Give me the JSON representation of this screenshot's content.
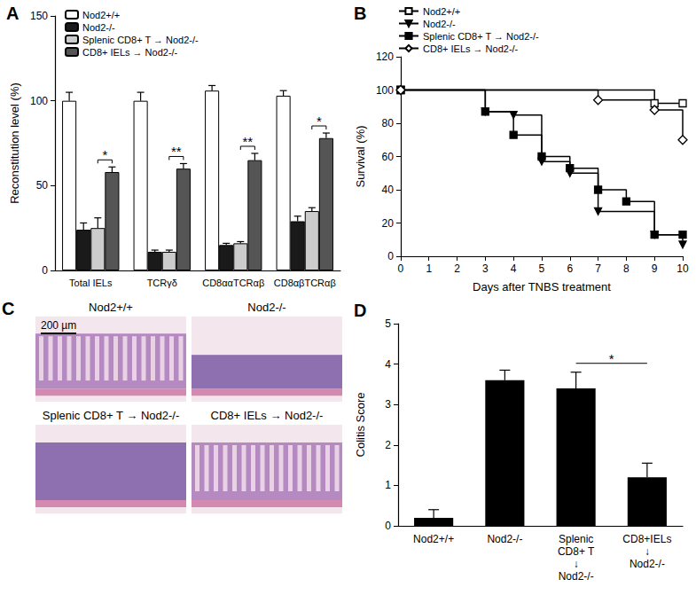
{
  "chart_data": [
    {
      "panel": "A",
      "type": "bar",
      "y_label": "Reconstitution level (%)",
      "categories": [
        "Total IELs",
        "TCRγδ",
        "CD8ααTCRαβ",
        "CD8αβTCRαβ"
      ],
      "ylim": [
        0,
        150
      ],
      "yticks": [
        0,
        50,
        100,
        150
      ],
      "legend": "upper-left",
      "series": [
        {
          "name": "Nod2+/+",
          "color": "#ffffff",
          "values": [
            100,
            100,
            106,
            103
          ],
          "errors": [
            5,
            5,
            3,
            3
          ]
        },
        {
          "name": "Nod2-/-",
          "color": "#1a1a1a",
          "values": [
            24,
            11,
            15,
            29
          ],
          "errors": [
            4,
            1,
            1,
            3
          ]
        },
        {
          "name": "Splenic CD8+ T → Nod2-/-",
          "color": "#cccccc",
          "values": [
            25,
            11,
            16,
            35
          ],
          "errors": [
            6,
            1,
            1,
            2
          ]
        },
        {
          "name": "CD8+ IELs → Nod2-/-",
          "color": "#555555",
          "values": [
            58,
            60,
            65,
            78
          ],
          "errors": [
            3,
            3,
            4,
            3
          ]
        }
      ],
      "annotations": [
        {
          "category": "Total IELs",
          "text": "*",
          "between": [
            "Splenic CD8+ T → Nod2-/-",
            "CD8+ IELs → Nod2-/-"
          ]
        },
        {
          "category": "TCRγδ",
          "text": "**",
          "between": [
            "Splenic CD8+ T → Nod2-/-",
            "CD8+ IELs → Nod2-/-"
          ]
        },
        {
          "category": "CD8ααTCRαβ",
          "text": "**",
          "between": [
            "Splenic CD8+ T → Nod2-/-",
            "CD8+ IELs → Nod2-/-"
          ]
        },
        {
          "category": "CD8αβTCRαβ",
          "text": "*",
          "between": [
            "Splenic CD8+ T → Nod2-/-",
            "CD8+ IELs → Nod2-/-"
          ]
        }
      ]
    },
    {
      "panel": "B",
      "type": "line",
      "x_label": "Days after TNBS treatment",
      "y_label": "Survival (%)",
      "xlim": [
        0,
        10
      ],
      "xticks": [
        0,
        1,
        2,
        3,
        4,
        5,
        6,
        7,
        8,
        9,
        10
      ],
      "ylim": [
        0,
        120
      ],
      "yticks": [
        0,
        20,
        40,
        60,
        80,
        100,
        120
      ],
      "legend": "upper-left",
      "series": [
        {
          "name": "Nod2+/+",
          "color": "#000000",
          "marker": "open-square",
          "line_style": "step",
          "x": [
            0,
            9,
            10
          ],
          "values": [
            100,
            92,
            92
          ]
        },
        {
          "name": "Nod2-/-",
          "color": "#000000",
          "marker": "triangle-down",
          "line_style": "step",
          "x": [
            0,
            3,
            4,
            5,
            6,
            7,
            9,
            10
          ],
          "values": [
            100,
            87,
            85,
            57,
            50,
            27,
            13,
            7
          ]
        },
        {
          "name": "Splenic CD8+ T → Nod2-/-",
          "color": "#000000",
          "marker": "square",
          "line_style": "step",
          "x": [
            0,
            3,
            4,
            5,
            6,
            7,
            8,
            9,
            10
          ],
          "values": [
            100,
            87,
            73,
            60,
            53,
            40,
            33,
            13,
            13
          ]
        },
        {
          "name": "CD8+ IELs → Nod2-/-",
          "color": "#000000",
          "marker": "open-diamond",
          "line_style": "step",
          "x": [
            0,
            7,
            9,
            10
          ],
          "values": [
            100,
            94,
            88,
            70
          ]
        }
      ]
    },
    {
      "panel": "C",
      "type": "image",
      "scale_bar": "200 µm",
      "images": [
        {
          "title": "Nod2+/+"
        },
        {
          "title": "Nod2-/-"
        },
        {
          "title": "Splenic CD8+ T → Nod2-/-"
        },
        {
          "title": "CD8+ IELs → Nod2-/-"
        }
      ]
    },
    {
      "panel": "D",
      "type": "bar",
      "y_label": "Colitis Score",
      "categories": [
        "Nod2+/+",
        "Nod2-/-",
        "Splenic\nCD8+ T\n↓\nNod2-/-",
        "CD8+IELs\n↓\nNod2-/-"
      ],
      "values": [
        0.2,
        3.6,
        3.4,
        1.2
      ],
      "errors": [
        0.2,
        0.25,
        0.4,
        0.35
      ],
      "color": "#000000",
      "ylim": [
        0,
        5
      ],
      "yticks": [
        0,
        1,
        2,
        3,
        4,
        5
      ],
      "annotations": [
        {
          "text": "*",
          "between": [
            "Splenic\nCD8+ T\n↓\nNod2-/-",
            "CD8+IELs\n↓\nNod2-/-"
          ]
        }
      ]
    }
  ]
}
